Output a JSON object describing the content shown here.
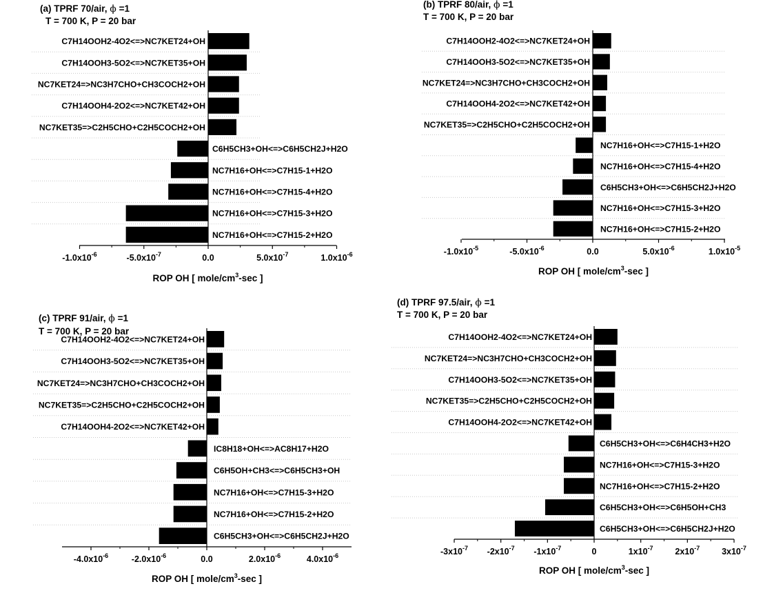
{
  "chart_data": [
    {
      "type": "bar",
      "orientation": "horizontal",
      "title_line1": "(a) TPRF 70/air, ",
      "phi_symbol": "ϕ",
      "title_phi_value": " =1",
      "title_line2": "T = 700 K, P = 20 bar",
      "xlabel_main": "ROP OH  [ mole/cm",
      "xlabel_sup": "3",
      "xlabel_tail": "-sec ]",
      "xlim": [
        -1e-06,
        1e-06
      ],
      "ticks": [
        {
          "v": -1e-06,
          "m": "-1.0x10",
          "e": "-6"
        },
        {
          "v": -5e-07,
          "m": "-5.0x10",
          "e": "-7"
        },
        {
          "v": 0,
          "m": "0.0",
          "e": ""
        },
        {
          "v": 5e-07,
          "m": "5.0x10",
          "e": "-7"
        },
        {
          "v": 1e-06,
          "m": "1.0x10",
          "e": "-6"
        }
      ],
      "grid": true,
      "reactions": [
        {
          "label": "C7H14OOH2-4O2<=>NC7KET24+OH",
          "value": 3.2e-07
        },
        {
          "label": "C7H14OOH3-5O2<=>NC7KET35+OH",
          "value": 3e-07
        },
        {
          "label": "NC7KET24=>NC3H7CHO+CH3COCH2+OH",
          "value": 2.4e-07
        },
        {
          "label": "C7H14OOH4-2O2<=>NC7KET42+OH",
          "value": 2.4e-07
        },
        {
          "label": "NC7KET35=>C2H5CHO+C2H5COCH2+OH",
          "value": 2.2e-07
        },
        {
          "label": "C6H5CH3+OH<=>C6H5CH2J+H2O",
          "value": -2.4e-07
        },
        {
          "label": "NC7H16+OH<=>C7H15-1+H2O",
          "value": -2.9e-07
        },
        {
          "label": "NC7H16+OH<=>C7H15-4+H2O",
          "value": -3.1e-07
        },
        {
          "label": "NC7H16+OH<=>C7H15-3+H2O",
          "value": -6.4e-07
        },
        {
          "label": "NC7H16+OH<=>C7H15-2+H2O",
          "value": -6.4e-07
        }
      ]
    },
    {
      "type": "bar",
      "orientation": "horizontal",
      "title_line1": "(b) TPRF 80/air, ",
      "phi_symbol": "ϕ",
      "title_phi_value": " =1",
      "title_line2": "T = 700 K, P = 20 bar",
      "xlabel_main": "ROP OH  [ mole/cm",
      "xlabel_sup": "3",
      "xlabel_tail": "-sec ]",
      "xlim": [
        -1e-05,
        1e-05
      ],
      "ticks": [
        {
          "v": -1e-05,
          "m": "-1.0x10",
          "e": "-5"
        },
        {
          "v": -5e-06,
          "m": "-5.0x10",
          "e": "-6"
        },
        {
          "v": 0,
          "m": "0.0",
          "e": ""
        },
        {
          "v": 5e-06,
          "m": "5.0x10",
          "e": "-6"
        },
        {
          "v": 1e-05,
          "m": "1.0x10",
          "e": "-5"
        }
      ],
      "grid": true,
      "reactions": [
        {
          "label": "C7H14OOH2-4O2<=>NC7KET24+OH",
          "value": 1.4e-06
        },
        {
          "label": "C7H14OOH3-5O2<=>NC7KET35+OH",
          "value": 1.3e-06
        },
        {
          "label": "NC7KET24=>NC3H7CHO+CH3COCH2+OH",
          "value": 1.1e-06
        },
        {
          "label": "C7H14OOH4-2O2<=>NC7KET42+OH",
          "value": 1e-06
        },
        {
          "label": "NC7KET35=>C2H5CHO+C2H5COCH2+OH",
          "value": 1e-06
        },
        {
          "label": "NC7H16+OH<=>C7H15-1+H2O",
          "value": -1.3e-06
        },
        {
          "label": "NC7H16+OH<=>C7H15-4+H2O",
          "value": -1.5e-06
        },
        {
          "label": "C6H5CH3+OH<=>C6H5CH2J+H2O",
          "value": -2.3e-06
        },
        {
          "label": "NC7H16+OH<=>C7H15-3+H2O",
          "value": -3e-06
        },
        {
          "label": "NC7H16+OH<=>C7H15-2+H2O",
          "value": -3e-06
        }
      ]
    },
    {
      "type": "bar",
      "orientation": "horizontal",
      "title_line1": "(c) TPRF 91/air, ",
      "phi_symbol": "ϕ",
      "title_phi_value": " =1",
      "title_line2": "T = 700 K, P = 20 bar",
      "xlabel_main": "ROP OH  [ mole/cm",
      "xlabel_sup": "3",
      "xlabel_tail": "-sec ]",
      "xlim": [
        -5e-06,
        5e-06
      ],
      "ticks": [
        {
          "v": -4e-06,
          "m": "-4.0x10",
          "e": "-6"
        },
        {
          "v": -2e-06,
          "m": "-2.0x10",
          "e": "-6"
        },
        {
          "v": 0,
          "m": "0.0",
          "e": ""
        },
        {
          "v": 2e-06,
          "m": "2.0x10",
          "e": "-6"
        },
        {
          "v": 4e-06,
          "m": "4.0x10",
          "e": "-6"
        }
      ],
      "grid": true,
      "reactions": [
        {
          "label": "C7H14OOH2-4O2<=>NC7KET24+OH",
          "value": 6e-07
        },
        {
          "label": "C7H14OOH3-5O2<=>NC7KET35+OH",
          "value": 5.5e-07
        },
        {
          "label": "NC7KET24=>NC3H7CHO+CH3COCH2+OH",
          "value": 5e-07
        },
        {
          "label": "NC7KET35=>C2H5CHO+C2H5COCH2+OH",
          "value": 4.5e-07
        },
        {
          "label": "C7H14OOH4-2O2<=>NC7KET42+OH",
          "value": 4e-07
        },
        {
          "label": "IC8H18+OH<=>AC8H17+H2O",
          "value": -6.5e-07
        },
        {
          "label": "C6H5OH+CH3<=>C6H5CH3+OH",
          "value": -1.05e-06
        },
        {
          "label": "NC7H16+OH<=>C7H15-3+H2O",
          "value": -1.15e-06
        },
        {
          "label": "NC7H16+OH<=>C7H15-2+H2O",
          "value": -1.15e-06
        },
        {
          "label": "C6H5CH3+OH<=>C6H5CH2J+H2O",
          "value": -1.65e-06
        }
      ]
    },
    {
      "type": "bar",
      "orientation": "horizontal",
      "title_line1": "(d) TPRF 97.5/air, ",
      "phi_symbol": "ϕ",
      "title_phi_value": " =1",
      "title_line2": "T = 700 K, P = 20 bar",
      "xlabel_main": "ROP OH  [ mole/cm",
      "xlabel_sup": "3",
      "xlabel_tail": "-sec ]",
      "xlim": [
        -3e-07,
        3e-07
      ],
      "ticks": [
        {
          "v": -3e-07,
          "m": "-3x10",
          "e": "-7"
        },
        {
          "v": -2e-07,
          "m": "-2x10",
          "e": "-7"
        },
        {
          "v": -1e-07,
          "m": "-1x10",
          "e": "-7"
        },
        {
          "v": 0,
          "m": "0",
          "e": ""
        },
        {
          "v": 1e-07,
          "m": "1x10",
          "e": "-7"
        },
        {
          "v": 2e-07,
          "m": "2x10",
          "e": "-7"
        },
        {
          "v": 3e-07,
          "m": "3x10",
          "e": "-7"
        }
      ],
      "grid": true,
      "reactions": [
        {
          "label": "C7H14OOH2-4O2<=>NC7KET24+OH",
          "value": 5e-08
        },
        {
          "label": "NC7KET24=>NC3H7CHO+CH3COCH2+OH",
          "value": 4.7e-08
        },
        {
          "label": "C7H14OOH3-5O2<=>NC7KET35+OH",
          "value": 4.5e-08
        },
        {
          "label": "NC7KET35=>C2H5CHO+C2H5COCH2+OH",
          "value": 4.3e-08
        },
        {
          "label": "C7H14OOH4-2O2<=>NC7KET42+OH",
          "value": 3.7e-08
        },
        {
          "label": "C6H5CH3+OH<=>C6H4CH3+H2O",
          "value": -5.5e-08
        },
        {
          "label": "NC7H16+OH<=>C7H15-3+H2O",
          "value": -6.5e-08
        },
        {
          "label": "NC7H16+OH<=>C7H15-2+H2O",
          "value": -6.5e-08
        },
        {
          "label": "C6H5CH3+OH<=>C6H5OH+CH3",
          "value": -1.05e-07
        },
        {
          "label": "C6H5CH3+OH<=>C6H5CH2J+H2O",
          "value": -1.7e-07
        }
      ]
    }
  ],
  "colors": {
    "bar": "#000000",
    "axis": "#000000",
    "grid": "#c8c8c8",
    "text": "#000000"
  }
}
